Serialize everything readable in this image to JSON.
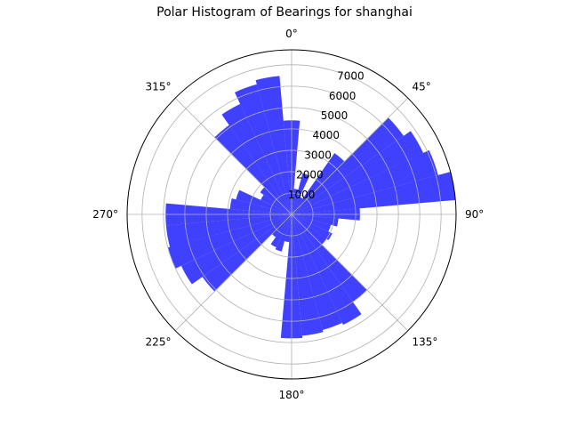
{
  "chart_data": {
    "type": "bar",
    "projection": "polar",
    "title": "Polar Histogram of Bearings for shanghai",
    "theta_direction": "clockwise",
    "theta_zero": "north",
    "bin_width_deg": 10,
    "angle_ticks": [
      "0°",
      "45°",
      "90°",
      "135°",
      "180°",
      "225°",
      "270°",
      "315°"
    ],
    "r_ticks": [
      1000,
      2000,
      3000,
      4000,
      5000,
      6000,
      7000
    ],
    "r_tick_labels": [
      "1000",
      "2000",
      "3000",
      "4000",
      "5000",
      "6000",
      "7000"
    ],
    "rlim": [
      0,
      7700
    ],
    "bar_color": "#0000ff",
    "bar_alpha": 0.75,
    "grid": true,
    "bins_deg": [
      0,
      10,
      20,
      30,
      40,
      50,
      60,
      70,
      80,
      90,
      100,
      110,
      120,
      130,
      140,
      150,
      160,
      170,
      180,
      190,
      200,
      210,
      220,
      230,
      240,
      250,
      260,
      270,
      280,
      290,
      300,
      310,
      320,
      330,
      340,
      350
    ],
    "values": [
      4400,
      1200,
      2000,
      900,
      3500,
      6400,
      6800,
      7100,
      7700,
      3200,
      2200,
      1900,
      2100,
      2000,
      5000,
      5700,
      5600,
      5700,
      5800,
      1300,
      1800,
      1700,
      1300,
      5100,
      5700,
      6000,
      5900,
      5900,
      2900,
      2700,
      1600,
      1800,
      5100,
      5700,
      6300,
      6500
    ]
  }
}
